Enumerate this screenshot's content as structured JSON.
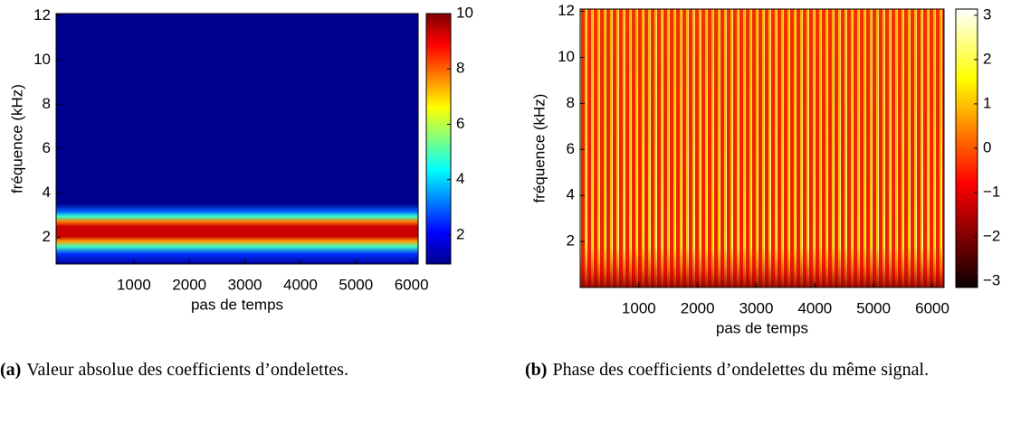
{
  "chart_data": [
    {
      "type": "heatmap",
      "xlabel": "pas de temps",
      "ylabel": "fréquence (kHz)",
      "xlim": [
        -400,
        6120
      ],
      "xticks": [
        1000,
        2000,
        3000,
        4000,
        5000,
        6000
      ],
      "ylim": [
        0.8,
        12.1
      ],
      "yticks": [
        2,
        4,
        6,
        8,
        10,
        12
      ],
      "colormap": "jet",
      "clim": [
        0.95,
        10
      ],
      "cticks": [
        2,
        4,
        6,
        8,
        10
      ],
      "caption_label": "(a)",
      "caption": "Valeur absolue des coefficients d’ondelettes."
    },
    {
      "type": "heatmap",
      "xlabel": "pas de temps",
      "ylabel": "fréquence (kHz)",
      "xlim": [
        0,
        6200
      ],
      "xticks": [
        1000,
        2000,
        3000,
        4000,
        5000,
        6000
      ],
      "ylim": [
        0,
        12.1
      ],
      "yticks": [
        2,
        4,
        6,
        8,
        10,
        12
      ],
      "colormap": "hot",
      "clim": [
        -3.14,
        3.14
      ],
      "cticks": [
        3,
        2,
        1,
        0,
        {
          "value": -1,
          "label": "−1"
        },
        {
          "value": -2,
          "label": "−2"
        },
        {
          "value": -3,
          "label": "−3"
        }
      ],
      "caption_label": "(b)",
      "caption": "Phase des coefficients d’ondelettes du même signal."
    }
  ]
}
